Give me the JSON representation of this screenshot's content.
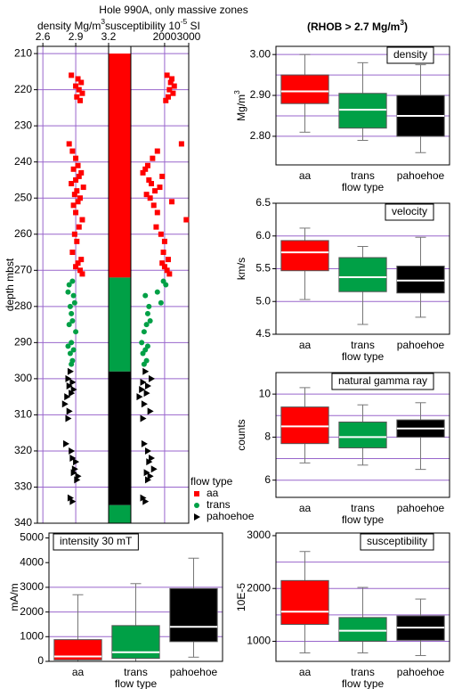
{
  "title": "Hole 990A, only massive zones",
  "subtitle": [
    "(RHOB > 2.7 Mg/m",
    "3",
    ")"
  ],
  "chart_data": [
    {
      "type": "depth-log",
      "ylabel": "depth mbst",
      "ylim": [
        208,
        340
      ],
      "yticks": [
        210,
        220,
        230,
        240,
        250,
        260,
        270,
        280,
        290,
        300,
        310,
        320,
        330,
        340
      ],
      "density_label": [
        "density Mg/m",
        "3"
      ],
      "density_xlim": [
        2.55,
        3.2
      ],
      "density_xticks": [
        {
          "value": 2.6,
          "label": "2.6"
        },
        {
          "value": 2.9,
          "label": "2.9"
        },
        {
          "value": 3.2,
          "label": "3.2"
        }
      ],
      "susceptibility_label": [
        "susceptibility 10",
        "-5",
        " SI"
      ],
      "susceptibility_xlim": [
        600,
        3000
      ],
      "susceptibility_xticks": [
        2000,
        3000
      ],
      "grid_color": "#9966cc",
      "legend_title": "flow type",
      "series": [
        {
          "name": "aa",
          "color": "#ff0000",
          "marker": "square",
          "depth": [
            216,
            217,
            218,
            219,
            220,
            221,
            222,
            223,
            235,
            237,
            239,
            241,
            242,
            243,
            244,
            245,
            246,
            247,
            248,
            249,
            250,
            251,
            252,
            254,
            256,
            258,
            260,
            262,
            265,
            267,
            268,
            269,
            270,
            271
          ],
          "density": [
            2.86,
            2.92,
            2.95,
            2.9,
            2.93,
            2.96,
            2.91,
            2.94,
            2.84,
            2.87,
            2.9,
            2.92,
            2.88,
            2.95,
            2.93,
            2.9,
            2.86,
            2.97,
            2.91,
            2.89,
            2.94,
            2.92,
            2.88,
            2.9,
            2.96,
            2.93,
            2.89,
            2.91,
            2.87,
            2.95,
            2.92,
            2.9,
            2.94,
            2.96
          ],
          "susceptibility": [
            2100,
            2300,
            2250,
            2400,
            2200,
            2350,
            2150,
            2050,
            2700,
            1700,
            1500,
            1300,
            1200,
            1100,
            1900,
            1350,
            1450,
            1800,
            1600,
            1250,
            1400,
            2300,
            1550,
            1700,
            2900,
            1650,
            1850,
            2000,
            1950,
            2150,
            1900,
            2000,
            2100,
            2200
          ]
        },
        {
          "name": "trans",
          "color": "#00a046",
          "marker": "circle",
          "depth": [
            273,
            274,
            276,
            277,
            279,
            280,
            282,
            284,
            285,
            287,
            290,
            291,
            292,
            293,
            295,
            296
          ],
          "density": [
            2.87,
            2.84,
            2.83,
            2.88,
            2.89,
            2.85,
            2.86,
            2.87,
            2.84,
            2.9,
            2.86,
            2.83,
            2.88,
            2.85,
            2.87,
            2.86
          ],
          "susceptibility": [
            1950,
            2050,
            1700,
            1200,
            1850,
            1350,
            1300,
            1400,
            1250,
            1150,
            1050,
            1300,
            1200,
            1100,
            1250,
            1150
          ]
        },
        {
          "name": "pahoehoe",
          "color": "#000000",
          "marker": "triangle",
          "depth": [
            298,
            300,
            301,
            302,
            303,
            304,
            305,
            307,
            309,
            311,
            318,
            320,
            322,
            323,
            325,
            326,
            327,
            328,
            333,
            334
          ],
          "density": [
            2.85,
            2.83,
            2.87,
            2.84,
            2.88,
            2.86,
            2.82,
            2.8,
            2.84,
            2.83,
            2.81,
            2.86,
            2.87,
            2.9,
            2.89,
            2.88,
            2.92,
            2.91,
            2.85,
            2.87
          ],
          "susceptibility": [
            1200,
            1450,
            1100,
            1300,
            1050,
            1250,
            950,
            1150,
            1400,
            1100,
            1150,
            1300,
            1450,
            1350,
            1550,
            1250,
            1400,
            1300,
            1100,
            1200
          ]
        }
      ],
      "units": [
        {
          "series": 0,
          "top": 210,
          "bottom": 272
        },
        {
          "series": 1,
          "top": 272,
          "bottom": 298
        },
        {
          "series": 2,
          "top": 298,
          "bottom": 335
        },
        {
          "series": 1,
          "top": 335,
          "bottom": 340
        }
      ]
    },
    {
      "type": "box",
      "title": "density",
      "ylabel": [
        "Mg/m",
        "3"
      ],
      "xlabel": "flow type",
      "categories": [
        "aa",
        "trans",
        "pahoehoe"
      ],
      "colors": [
        "#ff0000",
        "#00a046",
        "#000000"
      ],
      "whislo": [
        2.81,
        2.79,
        2.76
      ],
      "q1": [
        2.88,
        2.82,
        2.8
      ],
      "med": [
        2.91,
        2.865,
        2.85
      ],
      "q3": [
        2.95,
        2.905,
        2.9
      ],
      "whishi": [
        3.0,
        2.98,
        2.975
      ],
      "ylim": [
        2.73,
        3.02
      ],
      "yticks": [
        {
          "value": 2.8,
          "label": "2.80"
        },
        {
          "value": 2.9,
          "label": "2.90"
        },
        {
          "value": 3.0,
          "label": "3.00"
        }
      ],
      "grid": [
        2.8,
        2.85,
        2.9,
        2.95,
        3.0
      ],
      "grid_color": "#9966cc"
    },
    {
      "type": "box",
      "title": "velocity",
      "ylabel": "km/s",
      "xlabel": "flow type",
      "categories": [
        "aa",
        "trans",
        "pahoehoe"
      ],
      "colors": [
        "#ff0000",
        "#00a046",
        "#000000"
      ],
      "whislo": [
        5.03,
        4.65,
        4.76
      ],
      "q1": [
        5.47,
        5.15,
        5.13
      ],
      "med": [
        5.75,
        5.37,
        5.32
      ],
      "q3": [
        5.93,
        5.67,
        5.54
      ],
      "whishi": [
        6.12,
        5.84,
        5.98
      ],
      "ylim": [
        4.5,
        6.5
      ],
      "yticks": [
        {
          "value": 4.5,
          "label": "4.5"
        },
        {
          "value": 5.0,
          "label": "5.0"
        },
        {
          "value": 5.5,
          "label": "5.5"
        },
        {
          "value": 6.0,
          "label": "6.0"
        },
        {
          "value": 6.5,
          "label": "6.5"
        }
      ],
      "grid": [
        5.0,
        5.5,
        6.0
      ],
      "grid_color": "#9966cc"
    },
    {
      "type": "box",
      "title": "natural gamma ray",
      "ylabel": "counts",
      "xlabel": "flow type",
      "categories": [
        "aa",
        "trans",
        "pahoehoe"
      ],
      "colors": [
        "#ff0000",
        "#00a046",
        "#000000"
      ],
      "whislo": [
        6.8,
        6.7,
        6.5
      ],
      "q1": [
        7.7,
        7.5,
        8.0
      ],
      "med": [
        8.5,
        8.0,
        8.4
      ],
      "q3": [
        9.4,
        8.7,
        8.8
      ],
      "whishi": [
        10.3,
        9.5,
        9.6
      ],
      "ylim": [
        5.2,
        11
      ],
      "yticks": [
        6,
        8,
        10
      ],
      "grid": [
        6,
        7,
        8,
        9,
        10
      ],
      "grid_color": "#9966cc"
    },
    {
      "type": "box",
      "title": "intensity 30 mT",
      "ylabel": "mA/m",
      "xlabel": "flow type",
      "categories": [
        "aa",
        "trans",
        "pahoehoe"
      ],
      "colors": [
        "#ff0000",
        "#00a046",
        "#000000"
      ],
      "whislo": [
        0,
        0,
        170
      ],
      "q1": [
        60,
        120,
        800
      ],
      "med": [
        200,
        370,
        1400
      ],
      "q3": [
        880,
        1450,
        2950
      ],
      "whishi": [
        2700,
        3150,
        4180
      ],
      "ylim": [
        0,
        5200
      ],
      "yticks": [
        0,
        1000,
        2000,
        3000,
        4000,
        5000
      ],
      "grid": [
        1000,
        2000,
        3000
      ],
      "grid_color": "#9966cc"
    },
    {
      "type": "box",
      "title": "susceptibility",
      "ylabel": "10E-5",
      "xlabel": "flow type",
      "categories": [
        "aa",
        "trans",
        "pahoehoe"
      ],
      "colors": [
        "#ff0000",
        "#00a046",
        "#000000"
      ],
      "whislo": [
        780,
        780,
        730
      ],
      "q1": [
        1320,
        1000,
        1020
      ],
      "med": [
        1560,
        1200,
        1260
      ],
      "q3": [
        2150,
        1450,
        1480
      ],
      "whishi": [
        2700,
        2020,
        1800
      ],
      "ylim": [
        620,
        3050
      ],
      "yticks": [
        1000,
        2000,
        3000
      ],
      "grid": [
        1000,
        1500,
        2000,
        2500
      ],
      "grid_color": "#9966cc"
    }
  ]
}
